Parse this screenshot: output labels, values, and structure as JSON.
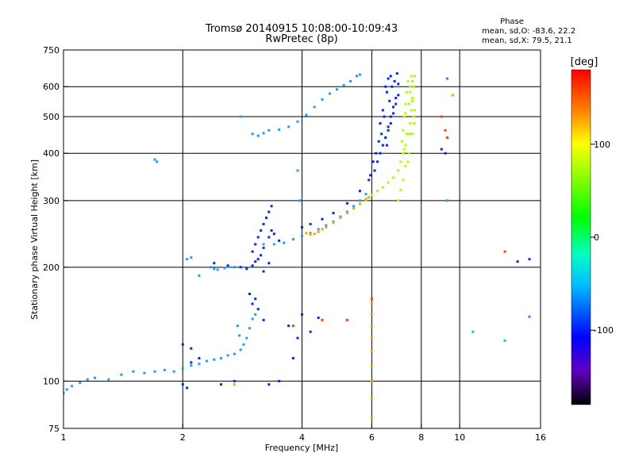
{
  "chart_data": {
    "type": "scatter",
    "title": "Tromsø 20140915 10:08:00-10:09:43",
    "subtitle": "RwPretec (8p)",
    "phase_box": {
      "header": "Phase",
      "line_o": "mean, sd,O: -83.6, 22.2",
      "line_x": "mean, sd,X:  79.5, 21.1"
    },
    "xlabel": "Frequency [MHz]",
    "ylabel": "Stationary phase Virtual Height [km]",
    "xscale": "log",
    "yscale": "log",
    "xlim": [
      1,
      16
    ],
    "ylim": [
      75,
      750
    ],
    "x_ticks": [
      1,
      2,
      4,
      6,
      8,
      10,
      16
    ],
    "x_gridlines": [
      2,
      4,
      6,
      8,
      10
    ],
    "y_ticks": [
      75,
      100,
      200,
      300,
      400,
      500,
      600,
      750
    ],
    "y_gridlines": [
      100,
      200,
      300,
      400,
      500,
      600
    ],
    "grid": true,
    "colorbar": {
      "label": "[deg]",
      "range": [
        -180,
        180
      ],
      "ticks": [
        100,
        0,
        -100
      ],
      "colors": [
        "#ff0000",
        "#ff8000",
        "#ffff00",
        "#80ff00",
        "#00ff00",
        "#00ffc0",
        "#00c0ff",
        "#0060ff",
        "#0000ff",
        "#6000c0",
        "#000000"
      ]
    },
    "series": [
      {
        "color": "#1ca0ff",
        "points": [
          [
            1.0,
            93
          ],
          [
            1.02,
            95
          ],
          [
            1.05,
            97
          ],
          [
            1.1,
            99
          ],
          [
            1.15,
            101
          ],
          [
            1.2,
            102
          ],
          [
            1.3,
            101
          ],
          [
            1.4,
            104
          ],
          [
            1.5,
            106
          ],
          [
            1.6,
            105
          ],
          [
            1.7,
            106
          ],
          [
            1.8,
            107
          ],
          [
            1.9,
            106
          ],
          [
            2.0,
            108
          ],
          [
            2.1,
            110
          ],
          [
            2.2,
            111
          ],
          [
            2.3,
            113
          ],
          [
            2.4,
            114
          ],
          [
            2.5,
            115
          ],
          [
            2.6,
            117
          ],
          [
            2.7,
            118
          ],
          [
            2.8,
            121
          ],
          [
            2.85,
            125
          ],
          [
            2.9,
            130
          ],
          [
            2.95,
            138
          ],
          [
            3.0,
            146
          ],
          [
            3.05,
            150
          ],
          [
            2.75,
            140
          ],
          [
            2.78,
            132
          ],
          [
            1.7,
            385
          ],
          [
            1.72,
            380
          ],
          [
            2.05,
            210
          ],
          [
            2.1,
            212
          ],
          [
            2.2,
            190
          ],
          [
            2.35,
            200
          ],
          [
            2.4,
            198
          ],
          [
            2.45,
            197
          ],
          [
            2.55,
            199
          ],
          [
            2.6,
            201
          ],
          [
            2.7,
            200
          ],
          [
            3.2,
            230
          ],
          [
            3.4,
            230
          ],
          [
            3.6,
            232
          ],
          [
            3.8,
            237
          ],
          [
            4.0,
            242
          ],
          [
            4.2,
            246
          ],
          [
            4.4,
            252
          ],
          [
            4.6,
            258
          ],
          [
            4.8,
            264
          ],
          [
            5.0,
            272
          ],
          [
            5.2,
            280
          ],
          [
            5.4,
            290
          ],
          [
            5.6,
            300
          ],
          [
            5.8,
            312
          ],
          [
            3.0,
            450
          ],
          [
            3.1,
            445
          ],
          [
            3.2,
            452
          ],
          [
            3.3,
            460
          ],
          [
            3.5,
            462
          ],
          [
            3.7,
            470
          ],
          [
            3.9,
            485
          ],
          [
            4.1,
            505
          ],
          [
            4.3,
            530
          ],
          [
            4.5,
            555
          ],
          [
            4.7,
            575
          ],
          [
            4.9,
            590
          ],
          [
            5.1,
            605
          ],
          [
            5.3,
            620
          ],
          [
            5.5,
            640
          ],
          [
            5.6,
            645
          ],
          [
            3.9,
            360
          ],
          [
            3.95,
            300
          ],
          [
            2.8,
            500
          ],
          [
            9.3,
            300
          ]
        ]
      },
      {
        "color": "#0028ff",
        "points": [
          [
            2.4,
            205
          ],
          [
            2.6,
            202
          ],
          [
            2.8,
            200
          ],
          [
            2.9,
            198
          ],
          [
            2.95,
            170
          ],
          [
            3.0,
            160
          ],
          [
            3.05,
            165
          ],
          [
            3.1,
            155
          ],
          [
            3.2,
            145
          ],
          [
            3.0,
            220
          ],
          [
            3.05,
            230
          ],
          [
            3.1,
            240
          ],
          [
            3.15,
            250
          ],
          [
            3.2,
            260
          ],
          [
            3.25,
            270
          ],
          [
            3.3,
            280
          ],
          [
            3.35,
            290
          ],
          [
            3.1,
            210
          ],
          [
            3.15,
            215
          ],
          [
            3.2,
            225
          ],
          [
            3.3,
            240
          ],
          [
            3.35,
            250
          ],
          [
            3.4,
            245
          ],
          [
            3.5,
            235
          ],
          [
            3.0,
            202
          ],
          [
            3.05,
            207
          ],
          [
            3.2,
            195
          ],
          [
            3.3,
            205
          ],
          [
            4.0,
            255
          ],
          [
            4.2,
            260
          ],
          [
            4.5,
            268
          ],
          [
            4.8,
            278
          ],
          [
            5.2,
            295
          ],
          [
            5.6,
            318
          ],
          [
            5.9,
            340
          ],
          [
            6.1,
            360
          ],
          [
            6.2,
            380
          ],
          [
            6.3,
            400
          ],
          [
            6.4,
            420
          ],
          [
            6.5,
            440
          ],
          [
            6.6,
            470
          ],
          [
            6.7,
            500
          ],
          [
            6.8,
            530
          ],
          [
            6.9,
            560
          ],
          [
            6.5,
            600
          ],
          [
            6.6,
            630
          ],
          [
            6.7,
            640
          ],
          [
            6.55,
            580
          ],
          [
            6.65,
            550
          ],
          [
            6.75,
            600
          ],
          [
            6.85,
            620
          ],
          [
            6.45,
            500
          ],
          [
            6.35,
            450
          ],
          [
            6.25,
            430
          ],
          [
            6.55,
            420
          ],
          [
            6.6,
            460
          ],
          [
            6.7,
            480
          ],
          [
            6.8,
            510
          ],
          [
            6.9,
            540
          ],
          [
            7.0,
            570
          ],
          [
            7.0,
            610
          ],
          [
            6.95,
            650
          ],
          [
            6.4,
            520
          ],
          [
            6.3,
            480
          ],
          [
            6.15,
            400
          ],
          [
            6.05,
            380
          ],
          [
            5.95,
            350
          ],
          [
            3.9,
            130
          ],
          [
            3.8,
            115
          ],
          [
            3.7,
            140
          ],
          [
            4.0,
            150
          ],
          [
            4.4,
            147
          ],
          [
            3.5,
            100
          ],
          [
            2.7,
            100
          ],
          [
            3.3,
            98
          ],
          [
            2.2,
            115
          ],
          [
            2.1,
            112
          ],
          [
            2.0,
            98
          ],
          [
            2.05,
            96
          ],
          [
            2.5,
            98
          ],
          [
            9.2,
            400
          ],
          [
            15.0,
            210
          ],
          [
            14.0,
            207
          ]
        ]
      },
      {
        "color": "#b0ff00",
        "points": [
          [
            5.8,
            300
          ],
          [
            6.0,
            310
          ],
          [
            6.2,
            318
          ],
          [
            6.4,
            325
          ],
          [
            6.6,
            335
          ],
          [
            6.8,
            345
          ],
          [
            7.0,
            360
          ],
          [
            7.1,
            380
          ],
          [
            7.2,
            400
          ],
          [
            7.3,
            420
          ],
          [
            7.4,
            450
          ],
          [
            7.5,
            480
          ],
          [
            7.55,
            520
          ],
          [
            7.6,
            560
          ],
          [
            7.65,
            600
          ],
          [
            7.7,
            640
          ],
          [
            7.4,
            620
          ],
          [
            7.35,
            580
          ],
          [
            7.3,
            540
          ],
          [
            7.25,
            500
          ],
          [
            7.2,
            460
          ],
          [
            7.15,
            430
          ],
          [
            7.5,
            600
          ],
          [
            7.55,
            640
          ],
          [
            7.6,
            550
          ],
          [
            7.65,
            500
          ],
          [
            7.45,
            400
          ],
          [
            7.4,
            380
          ],
          [
            7.0,
            300
          ],
          [
            7.1,
            320
          ],
          [
            7.2,
            340
          ],
          [
            7.3,
            370
          ],
          [
            7.5,
            450
          ],
          [
            7.6,
            450
          ],
          [
            7.7,
            520
          ],
          [
            7.68,
            480
          ],
          [
            7.35,
            450
          ],
          [
            7.25,
            410
          ],
          [
            7.3,
            510
          ],
          [
            7.45,
            540
          ],
          [
            7.5,
            580
          ],
          [
            7.6,
            620
          ]
        ]
      },
      {
        "color": "#ffa000",
        "points": [
          [
            4.1,
            246
          ],
          [
            4.2,
            244
          ],
          [
            4.3,
            245
          ],
          [
            4.4,
            248
          ],
          [
            4.5,
            252
          ],
          [
            4.6,
            255
          ],
          [
            4.8,
            262
          ],
          [
            5.0,
            270
          ],
          [
            5.2,
            278
          ],
          [
            5.4,
            286
          ],
          [
            5.6,
            294
          ],
          [
            5.8,
            303
          ],
          [
            5.9,
            306
          ],
          [
            6.0,
            150
          ],
          [
            6.0,
            140
          ],
          [
            6.0,
            130
          ],
          [
            6.0,
            120
          ],
          [
            6.0,
            110
          ],
          [
            6.0,
            100
          ],
          [
            6.0,
            90
          ],
          [
            6.0,
            80
          ],
          [
            6.0,
            160
          ],
          [
            2.7,
            98
          ],
          [
            9.6,
            570
          ]
        ]
      },
      {
        "color": "#ff4000",
        "points": [
          [
            3.8,
            140
          ],
          [
            4.5,
            145
          ],
          [
            5.2,
            145
          ],
          [
            6.0,
            165
          ],
          [
            9.3,
            440
          ],
          [
            9.0,
            500
          ],
          [
            9.2,
            460
          ],
          [
            13.0,
            220
          ]
        ]
      },
      {
        "color": "#00d0c0",
        "points": [
          [
            10.8,
            135
          ],
          [
            13.0,
            128
          ]
        ]
      },
      {
        "color": "#3080ff",
        "points": [
          [
            15.0,
            148
          ],
          [
            9.3,
            630
          ]
        ]
      },
      {
        "color": "#6000c0",
        "points": [
          [
            2.1,
            122
          ],
          [
            2.0,
            125
          ],
          [
            4.2,
            135
          ],
          [
            9.0,
            410
          ]
        ]
      }
    ]
  }
}
